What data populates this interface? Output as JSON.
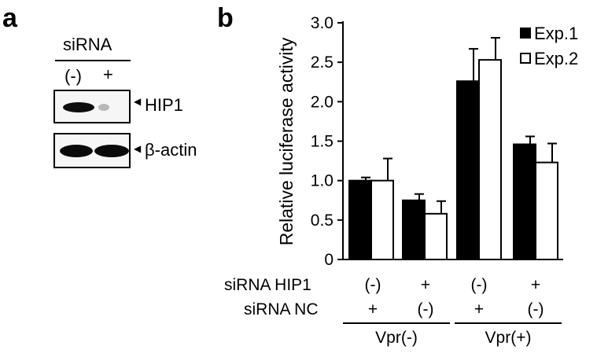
{
  "panel_a": {
    "label": "a",
    "header": "siRNA",
    "lanes": [
      "(-)",
      "+"
    ],
    "blots": [
      {
        "name": "HIP1",
        "band_intensity": [
          0.95,
          0.15
        ]
      },
      {
        "name": "β-actin",
        "band_intensity": [
          0.95,
          0.95
        ]
      }
    ]
  },
  "panel_b": {
    "label": "b",
    "row_labels": [
      "siRNA HIP1",
      "siRNA NC"
    ],
    "rows": [
      [
        "(-)",
        "+",
        "(-)",
        "+"
      ],
      [
        "+",
        "(-)",
        "+",
        "(-)"
      ]
    ],
    "groups": [
      "Vpr(-)",
      "Vpr(+)"
    ]
  },
  "chart_data": {
    "type": "bar",
    "categories": [
      "Vpr(-) siRNA NC",
      "Vpr(-) siRNA HIP1",
      "Vpr(+) siRNA NC",
      "Vpr(+) siRNA HIP1"
    ],
    "series": [
      {
        "name": "Exp.1",
        "values": [
          1.0,
          0.75,
          2.26,
          1.46
        ],
        "errors": [
          0.04,
          0.08,
          0.41,
          0.1
        ],
        "color": "#000000"
      },
      {
        "name": "Exp.2",
        "values": [
          1.0,
          0.58,
          2.53,
          1.23
        ],
        "errors": [
          0.28,
          0.16,
          0.28,
          0.24
        ],
        "color": "#ffffff"
      }
    ],
    "ylabel": "Relative luciferase activity",
    "ylim": [
      0,
      3.0
    ],
    "yticks": [
      "0",
      "0.5",
      "1.0",
      "1.5",
      "2.0",
      "2.5",
      "3.0"
    ],
    "legend_position": "top-right",
    "grid": false
  }
}
